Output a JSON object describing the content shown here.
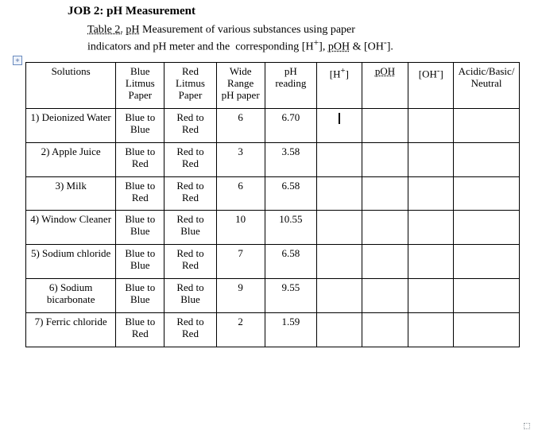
{
  "heading": "JOB 2: pH Measurement",
  "caption": {
    "table_label": "Table 2.",
    "label_space": " ",
    "u1": "pH",
    "mid1": " Measurement of various substances using paper\nindicators and pH meter and the  corresponding [H",
    "sup1": "+",
    "mid2": "], ",
    "u2": "pOH",
    "mid3": " & [OH",
    "sup2": "-",
    "tail": "]."
  },
  "headers": {
    "c0": "Solutions",
    "c1": "Blue Litmus Paper",
    "c2": "Red Litmus Paper",
    "c3": "Wide Range pH paper",
    "c4": "pH reading",
    "c5_pre": "[H",
    "c5_sup": "+",
    "c5_post": "]",
    "c6": "pOH",
    "c7_pre": "[OH",
    "c7_sup": "-",
    "c7_post": "]",
    "c8": "Acidic/Basic/ Neutral"
  },
  "rows": [
    {
      "sol": "1) Deionized Water",
      "blue": "Blue to Blue",
      "red": "Red to Red",
      "wide": "6",
      "pH": "6.70",
      "cursor": true
    },
    {
      "sol": "2) Apple Juice",
      "blue": "Blue to Red",
      "red": "Red to Red",
      "wide": "3",
      "pH": "3.58"
    },
    {
      "sol": "3) Milk",
      "blue": "Blue to Red",
      "red": "Red to Red",
      "wide": "6",
      "pH": "6.58"
    },
    {
      "sol": "4) Window Cleaner",
      "blue": "Blue to Blue",
      "red": "Red to Blue",
      "wide": "10",
      "pH": "10.55"
    },
    {
      "sol": "5) Sodium chloride",
      "blue": "Blue to Blue",
      "red": "Red to Red",
      "wide": "7",
      "pH": "6.58"
    },
    {
      "sol": "6) Sodium bicarbonate",
      "blue": "Blue to Blue",
      "red": "Red to Blue",
      "wide": "9",
      "pH": "9.55"
    },
    {
      "sol": "7) Ferric chloride",
      "blue": "Blue to Red",
      "red": "Red to Red",
      "wide": "2",
      "pH": "1.59"
    }
  ],
  "anchor_glyph": "+"
}
